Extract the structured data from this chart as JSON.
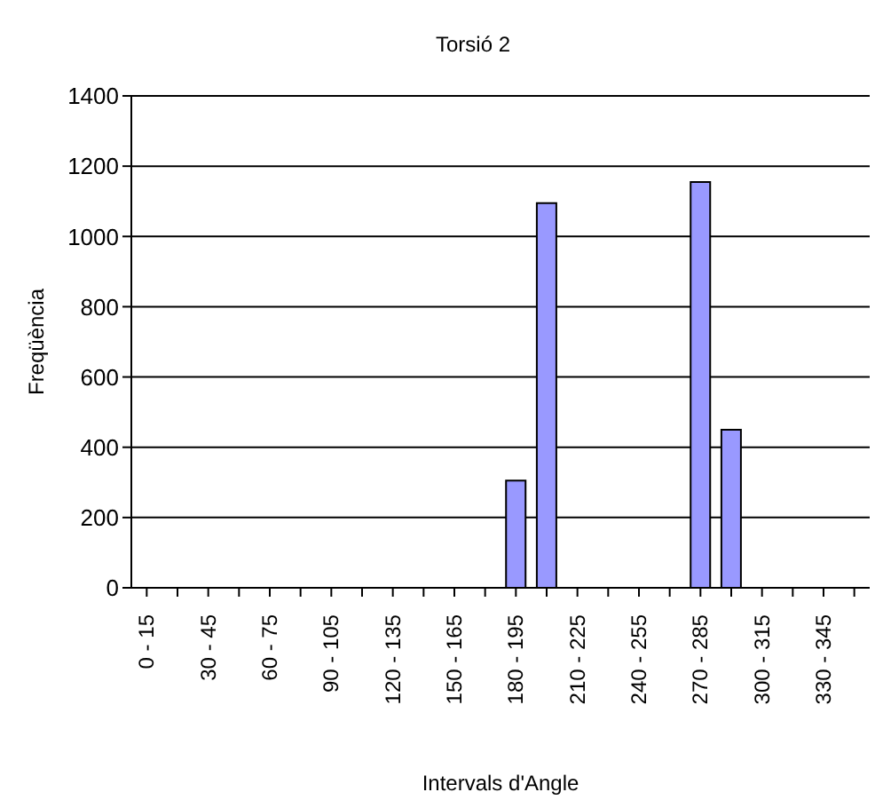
{
  "chart_data": {
    "type": "bar",
    "title": "Torsió 2",
    "xlabel": "Intervals d'Angle",
    "ylabel": "Freqüència",
    "categories": [
      "0 - 15",
      null,
      "30 - 45",
      null,
      "60 - 75",
      null,
      "90 - 105",
      null,
      "120 - 135",
      null,
      "150 - 165",
      null,
      "180 - 195",
      null,
      "210 - 225",
      null,
      "240 - 255",
      null,
      "270 - 285",
      null,
      "300 - 315",
      null,
      "330 - 345",
      null
    ],
    "values": [
      0,
      0,
      0,
      0,
      0,
      0,
      0,
      0,
      0,
      0,
      0,
      0,
      305,
      1095,
      0,
      0,
      0,
      0,
      1155,
      450,
      0,
      0,
      0,
      0
    ],
    "color": "#9999ff",
    "ylim": [
      0,
      1400
    ],
    "yticks": [
      0,
      200,
      400,
      600,
      800,
      1000,
      1200,
      1400
    ],
    "grid": "y"
  }
}
